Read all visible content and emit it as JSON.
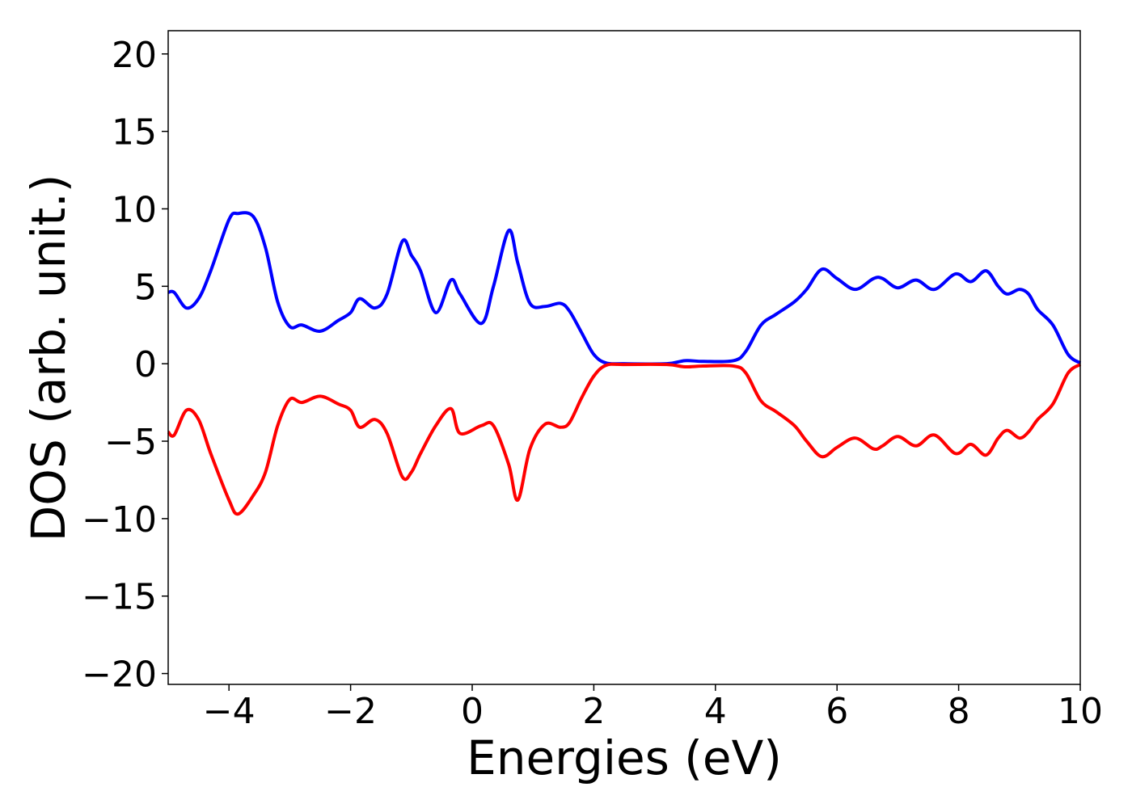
{
  "chart_data": {
    "type": "line",
    "xlabel": "Energies (eV)",
    "ylabel": "DOS (arb. unit.)",
    "x": [
      -5,
      -4.9,
      -4.7,
      -4.5,
      -4.3,
      -4.0,
      -3.85,
      -3.6,
      -3.4,
      -3.2,
      -3.0,
      -2.8,
      -2.5,
      -2.2,
      -2.0,
      -1.85,
      -1.6,
      -1.4,
      -1.15,
      -1.0,
      -0.85,
      -0.6,
      -0.35,
      -0.2,
      0.15,
      0.35,
      0.6,
      0.75,
      0.95,
      1.2,
      1.45,
      1.6,
      1.8,
      2.0,
      2.2,
      2.5,
      3.2,
      3.5,
      3.8,
      4.3,
      4.5,
      4.75,
      5.0,
      5.3,
      5.5,
      5.75,
      6.0,
      6.3,
      6.6,
      6.75,
      7.0,
      7.3,
      7.6,
      7.95,
      8.2,
      8.45,
      8.65,
      8.8,
      9.0,
      9.15,
      9.3,
      9.55,
      9.8,
      10
    ],
    "series": [
      {
        "color": "#0000ff",
        "values": [
          4.6,
          4.6,
          3.6,
          4.2,
          6.0,
          9.3,
          9.7,
          9.5,
          7.5,
          4.0,
          2.4,
          2.5,
          2.1,
          2.8,
          3.3,
          4.2,
          3.6,
          4.5,
          7.9,
          7.0,
          6.0,
          3.3,
          5.4,
          4.5,
          2.6,
          5.0,
          8.6,
          6.5,
          3.9,
          3.7,
          3.9,
          3.4,
          2.0,
          0.6,
          0.05,
          0,
          0,
          0.2,
          0.15,
          0.2,
          0.8,
          2.5,
          3.2,
          4.0,
          4.8,
          6.1,
          5.5,
          4.8,
          5.5,
          5.5,
          4.9,
          5.4,
          4.8,
          5.8,
          5.3,
          6.0,
          5.0,
          4.5,
          4.8,
          4.5,
          3.5,
          2.5,
          0.6,
          0.05
        ]
      },
      {
        "color": "#ff0000",
        "values": [
          -4.4,
          -4.6,
          -3.0,
          -3.6,
          -5.8,
          -8.8,
          -9.7,
          -8.5,
          -7.0,
          -4.0,
          -2.3,
          -2.5,
          -2.1,
          -2.6,
          -3.0,
          -4.1,
          -3.6,
          -4.5,
          -7.3,
          -7.0,
          -5.8,
          -4.0,
          -2.9,
          -4.5,
          -4.0,
          -4.0,
          -6.5,
          -8.8,
          -5.5,
          -3.9,
          -4.1,
          -3.8,
          -2.2,
          -0.8,
          -0.1,
          -0.05,
          -0.05,
          -0.2,
          -0.15,
          -0.15,
          -0.6,
          -2.4,
          -3.1,
          -4.0,
          -5.0,
          -6.0,
          -5.4,
          -4.8,
          -5.5,
          -5.3,
          -4.7,
          -5.3,
          -4.6,
          -5.8,
          -5.2,
          -5.9,
          -4.8,
          -4.3,
          -4.8,
          -4.4,
          -3.6,
          -2.6,
          -0.6,
          -0.05
        ]
      }
    ],
    "xlim": [
      -5,
      10
    ],
    "xticks": [
      {
        "value": -4,
        "label": "−4"
      },
      {
        "value": -2,
        "label": "−2"
      },
      0,
      2,
      4,
      6,
      8,
      10
    ],
    "ylim": [
      -20.7,
      21.5
    ],
    "yticks": [
      {
        "value": -20,
        "label": "−20"
      },
      {
        "value": -15,
        "label": "−15"
      },
      {
        "value": -10,
        "label": "−10"
      },
      {
        "value": -5,
        "label": "−5"
      },
      0,
      5,
      10,
      15,
      20
    ]
  }
}
